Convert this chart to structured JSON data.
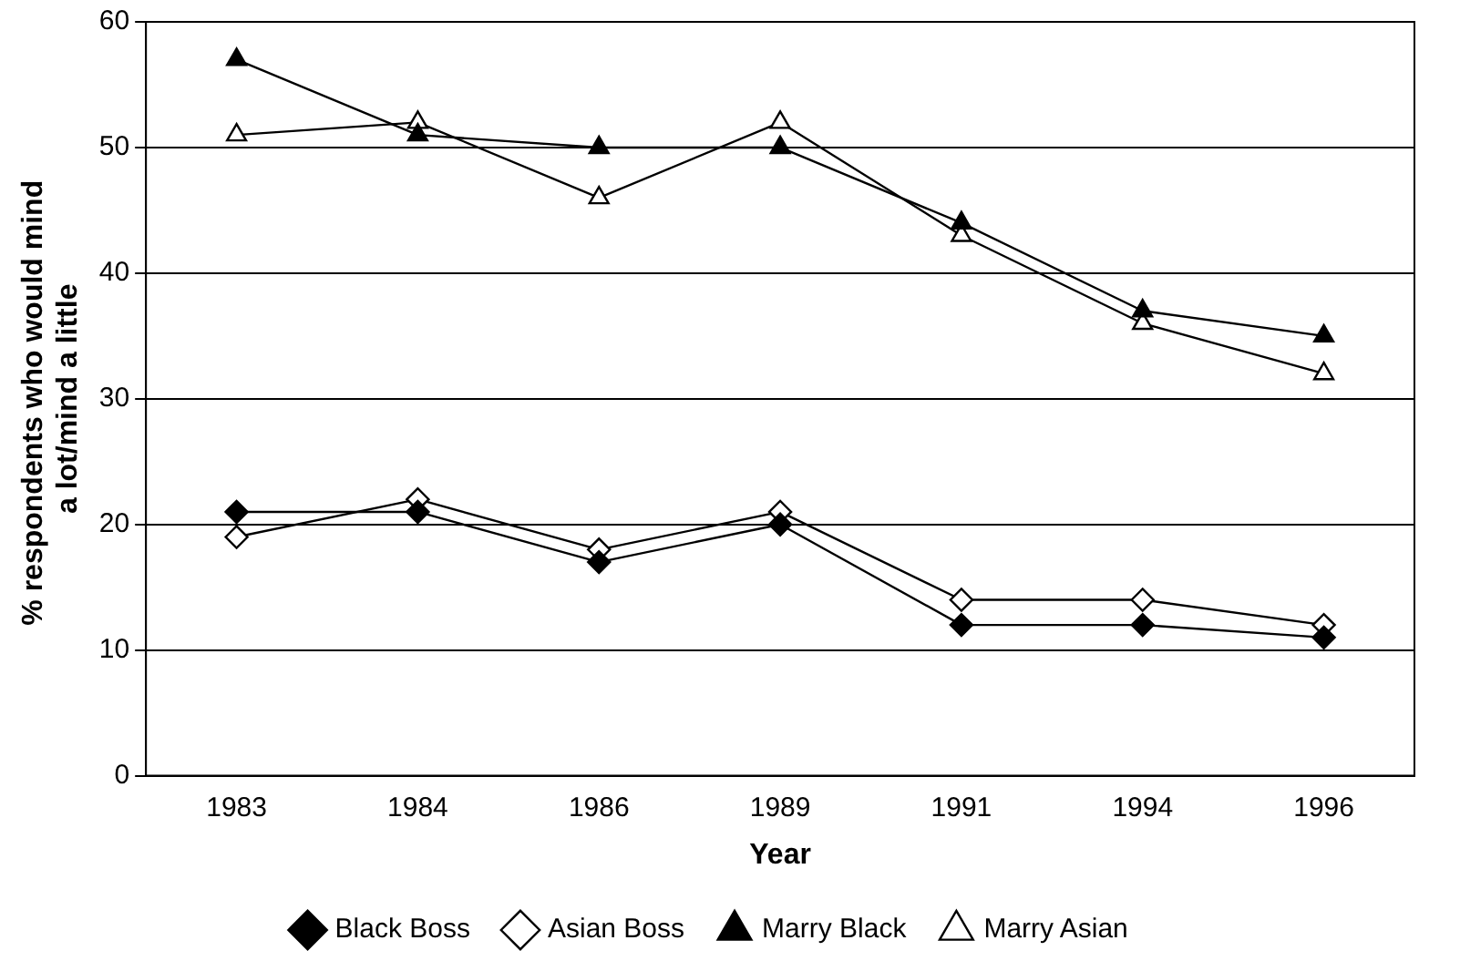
{
  "chart_data": {
    "type": "line",
    "xlabel": "Year",
    "ylabel": "% respondents who would mind a lot/mind a little",
    "categories": [
      "1983",
      "1984",
      "1986",
      "1989",
      "1991",
      "1994",
      "1996"
    ],
    "series": [
      {
        "name": "Black Boss",
        "color": "#000000",
        "marker": "diamond",
        "values": [
          21,
          21,
          17,
          20,
          12,
          12,
          11
        ]
      },
      {
        "name": "Asian Boss",
        "color": "#000000",
        "marker": "diamond",
        "colors": [
          "#ffffff",
          "#ffffff",
          "#ffffff",
          "#ffffff",
          "#ffffff",
          "#ffffff",
          "#ffffff"
        ],
        "values": [
          19,
          22,
          18,
          21,
          14,
          14,
          12
        ]
      },
      {
        "name": "Marry Black",
        "color": "#000000",
        "marker": "triangle",
        "values": [
          57,
          51,
          50,
          50,
          44,
          37,
          35
        ]
      },
      {
        "name": "Marry Asian",
        "color": "#000000",
        "marker": "triangle",
        "colors": [
          "#ffffff",
          "#ffffff",
          "#ffffff",
          "#ffffff",
          "#ffffff",
          "#ffffff",
          "#ffffff"
        ],
        "values": [
          51,
          52,
          46,
          52,
          43,
          36,
          32
        ]
      }
    ],
    "ylim": [
      0,
      60
    ],
    "yticks": [
      0,
      10,
      20,
      30,
      40,
      50,
      60
    ],
    "grid": "y",
    "legend": "bottom",
    "line_style": "solid"
  }
}
